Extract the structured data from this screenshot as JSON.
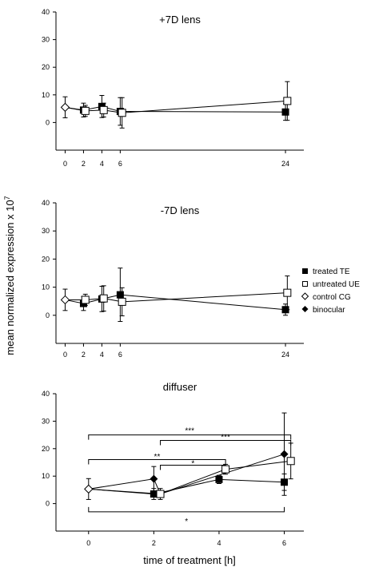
{
  "ylabel": "mean normalized expression x 10",
  "ylabel_exp": "7",
  "xlabel": "time of treatment [h]",
  "legend": [
    {
      "label": "treated TE",
      "marker": "square-filled"
    },
    {
      "label": "untreated UE",
      "marker": "square-open"
    },
    {
      "label": "control CG",
      "marker": "diamond-open"
    },
    {
      "label": "binocular",
      "marker": "diamond-filled"
    }
  ],
  "chart_data": [
    {
      "type": "line",
      "title": "+7D lens",
      "xlim": [
        -1,
        26
      ],
      "ylim": [
        -10,
        40
      ],
      "x_ticks": [
        "0",
        "2",
        "4",
        "6",
        "24"
      ],
      "y_ticks": [
        "0",
        "10",
        "20",
        "30",
        "40"
      ],
      "series": [
        {
          "name": "treated TE",
          "points": [
            {
              "x": 2,
              "y": 4.5,
              "err": 2.5
            },
            {
              "x": 4,
              "y": 5.8,
              "err": 4
            },
            {
              "x": 6,
              "y": 4,
              "err": 5
            },
            {
              "x": 24,
              "y": 3.8,
              "err": 3
            }
          ]
        },
        {
          "name": "untreated UE",
          "points": [
            {
              "x": 2.2,
              "y": 4.2,
              "err": 2
            },
            {
              "x": 4.2,
              "y": 4.5,
              "err": 2.5
            },
            {
              "x": 6.2,
              "y": 3.5,
              "err": 5.5
            },
            {
              "x": 24.2,
              "y": 7.8,
              "err": 7
            }
          ]
        },
        {
          "name": "control CG",
          "points": [
            {
              "x": 0,
              "y": 5.5,
              "err": 3.8
            }
          ]
        }
      ],
      "lines": [
        [
          "control CG",
          "treated TE",
          "treated TE",
          "treated TE",
          "treated TE"
        ],
        [
          "control CG",
          "untreated UE",
          "untreated UE",
          "untreated UE",
          "untreated UE"
        ]
      ]
    },
    {
      "type": "line",
      "title": "-7D lens",
      "xlim": [
        -1,
        26
      ],
      "ylim": [
        -10,
        40
      ],
      "x_ticks": [
        "0",
        "2",
        "4",
        "6",
        "24"
      ],
      "y_ticks": [
        "0",
        "10",
        "20",
        "30",
        "40"
      ],
      "series": [
        {
          "name": "treated TE",
          "points": [
            {
              "x": 2,
              "y": 4.2,
              "err": 2.5
            },
            {
              "x": 4,
              "y": 5.8,
              "err": 4.5
            },
            {
              "x": 6,
              "y": 7.3,
              "err": 9.5
            },
            {
              "x": 24,
              "y": 2,
              "err": 2
            }
          ]
        },
        {
          "name": "untreated UE",
          "points": [
            {
              "x": 2.2,
              "y": 5.5,
              "err": 2
            },
            {
              "x": 4.2,
              "y": 6,
              "err": 4.5
            },
            {
              "x": 6.2,
              "y": 4.8,
              "err": 5
            },
            {
              "x": 24.2,
              "y": 8,
              "err": 6
            }
          ]
        },
        {
          "name": "control CG",
          "points": [
            {
              "x": 0,
              "y": 5.5,
              "err": 3.8
            }
          ]
        }
      ],
      "lines": [
        [
          "control CG",
          "treated TE",
          "treated TE",
          "treated TE",
          "treated TE"
        ],
        [
          "control CG",
          "untreated UE",
          "untreated UE",
          "untreated UE",
          "untreated UE"
        ]
      ]
    },
    {
      "type": "line",
      "title": "diffuser",
      "xlim": [
        -1,
        6.6
      ],
      "ylim": [
        -10,
        40
      ],
      "x_ticks": [
        "0",
        "2",
        "4",
        "6"
      ],
      "y_ticks": [
        "0",
        "10",
        "20",
        "30",
        "40"
      ],
      "series": [
        {
          "name": "treated TE",
          "points": [
            {
              "x": 2,
              "y": 3.5,
              "err": 2
            },
            {
              "x": 4,
              "y": 8.8,
              "err": 1.5
            },
            {
              "x": 6,
              "y": 7.8,
              "err": 3
            }
          ]
        },
        {
          "name": "untreated UE",
          "points": [
            {
              "x": 2.2,
              "y": 3.5,
              "err": 2
            },
            {
              "x": 4.2,
              "y": 12.5,
              "err": 1.8
            },
            {
              "x": 6.2,
              "y": 15.5,
              "err": 6.5
            }
          ]
        },
        {
          "name": "control CG",
          "points": [
            {
              "x": 0,
              "y": 5.3,
              "err": 3.8
            }
          ]
        },
        {
          "name": "binocular",
          "points": [
            {
              "x": 2,
              "y": 9,
              "err": 4.5
            },
            {
              "x": 6,
              "y": 18,
              "err": 15
            }
          ]
        }
      ],
      "lines": [
        [
          "control CG",
          "treated TE",
          "treated TE",
          "treated TE"
        ],
        [
          "control CG",
          "untreated UE",
          "untreated UE",
          "untreated UE"
        ],
        [
          "control CG",
          "binocular",
          "untreated UE",
          "binocular"
        ]
      ],
      "significance": [
        {
          "from": 0,
          "to": 6.2,
          "y": 25,
          "label": "***",
          "label_y": 26.5
        },
        {
          "from": 2.2,
          "to": 6.2,
          "y": 23,
          "label": "***",
          "label_y": 24.1
        },
        {
          "from": 0,
          "to": 4.2,
          "y": 16,
          "label": "**",
          "label_y": 17.1
        },
        {
          "from": 2.2,
          "to": 4.2,
          "y": 14,
          "label": "*",
          "label_y": 14.5
        },
        {
          "from": 0,
          "to": 6,
          "y": -3,
          "label": "*",
          "label_y": -6.5,
          "below": true
        }
      ]
    }
  ]
}
